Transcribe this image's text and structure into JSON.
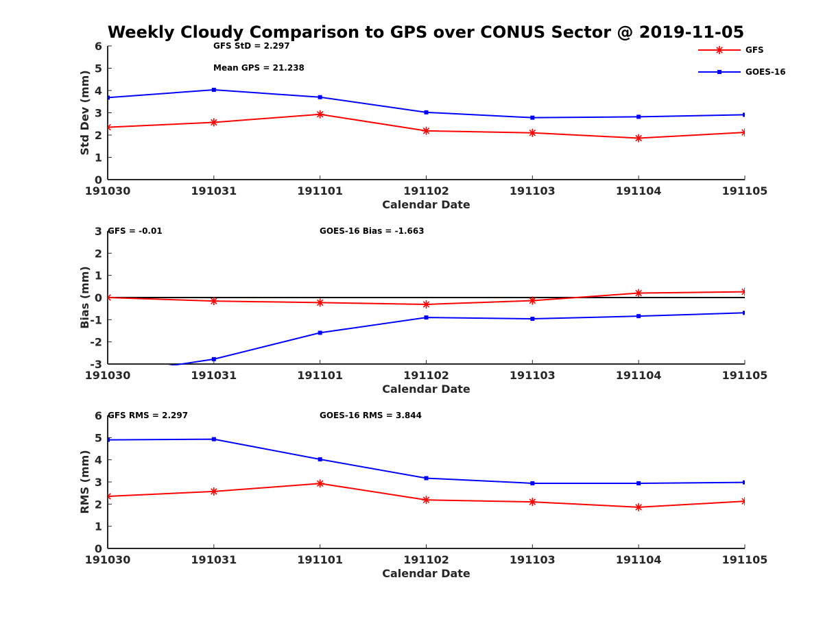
{
  "title": "Weekly Cloudy Comparison to GPS over CONUS Sector @ 2019-11-05",
  "legend": {
    "location": "top-right",
    "entries": [
      {
        "label": "GFS",
        "color": "#ff0000",
        "marker": "asterisk"
      },
      {
        "label": "GOES-16",
        "color": "#0000ff",
        "marker": "square"
      }
    ]
  },
  "chart_data": [
    {
      "type": "line",
      "xlabel": "Calendar Date",
      "ylabel": "Std Dev (mm)",
      "categories": [
        "191030",
        "191031",
        "191101",
        "191102",
        "191103",
        "191104",
        "191105"
      ],
      "ylim": [
        0,
        6
      ],
      "yticks": [
        0,
        1,
        2,
        3,
        4,
        5,
        6
      ],
      "zero_line": false,
      "annotations": [
        {
          "text": "GFS StD = 2.297",
          "anchor": "upper-left"
        },
        {
          "text": "Mean GPS = 21.238",
          "anchor": "upper-left"
        }
      ],
      "series": [
        {
          "name": "GFS",
          "color": "#ff0000",
          "marker": "asterisk",
          "values": [
            2.35,
            2.57,
            2.93,
            2.19,
            2.1,
            1.86,
            2.12
          ]
        },
        {
          "name": "GOES-16",
          "color": "#0000ff",
          "marker": "square",
          "values": [
            3.68,
            4.03,
            3.7,
            3.02,
            2.78,
            2.82,
            2.91
          ]
        }
      ]
    },
    {
      "type": "line",
      "xlabel": "Calendar Date",
      "ylabel": "Bias (mm)",
      "categories": [
        "191030",
        "191031",
        "191101",
        "191102",
        "191103",
        "191104",
        "191105"
      ],
      "ylim": [
        -3,
        3
      ],
      "yticks": [
        -3,
        -2,
        -1,
        0,
        1,
        2,
        3
      ],
      "zero_line": true,
      "annotations": [
        {
          "text": "GFS = -0.01",
          "anchor": "upper-left"
        },
        {
          "text": "GOES-16 Bias  = -1.663",
          "anchor": "upper-center"
        }
      ],
      "series": [
        {
          "name": "GFS",
          "color": "#ff0000",
          "marker": "asterisk",
          "values": [
            0.0,
            -0.16,
            -0.23,
            -0.31,
            -0.14,
            0.2,
            0.26
          ]
        },
        {
          "name": "GOES-16",
          "color": "#0000ff",
          "marker": "square",
          "values": [
            -3.5,
            -2.78,
            -1.59,
            -0.9,
            -0.96,
            -0.84,
            -0.69
          ]
        }
      ]
    },
    {
      "type": "line",
      "xlabel": "Calendar Date",
      "ylabel": "RMS (mm)",
      "categories": [
        "191030",
        "191031",
        "191101",
        "191102",
        "191103",
        "191104",
        "191105"
      ],
      "ylim": [
        0,
        6
      ],
      "yticks": [
        0,
        1,
        2,
        3,
        4,
        5,
        6
      ],
      "zero_line": false,
      "annotations": [
        {
          "text": "GFS RMS = 2.297",
          "anchor": "upper-left"
        },
        {
          "text": "GOES-16 RMS = 3.844",
          "anchor": "upper-center"
        }
      ],
      "series": [
        {
          "name": "GFS",
          "color": "#ff0000",
          "marker": "asterisk",
          "values": [
            2.35,
            2.57,
            2.93,
            2.19,
            2.1,
            1.86,
            2.13
          ]
        },
        {
          "name": "GOES-16",
          "color": "#0000ff",
          "marker": "square",
          "values": [
            4.9,
            4.93,
            4.02,
            3.17,
            2.94,
            2.94,
            2.98
          ]
        }
      ]
    }
  ]
}
